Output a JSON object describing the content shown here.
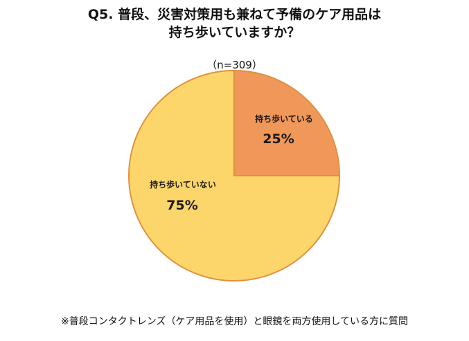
{
  "chart_data": {
    "type": "pie",
    "title_lines": [
      "Q5. 普段、災害対策用も兼ねて予備のケア用品は",
      "持ち歩いていますか？"
    ],
    "sample_size": "（n=309）",
    "slices": [
      {
        "label": "持ち歩いている",
        "value": 25,
        "value_label": "25%",
        "color": "#F0975A"
      },
      {
        "label": "持ち歩いていない",
        "value": 75,
        "value_label": "75%",
        "color": "#FDD66B"
      }
    ],
    "footnote": "※普段コンタクトレンズ（ケア用品を使用）と眼鏡を両方使用している方に質問"
  },
  "colors": {
    "slice_border": "#E0913F"
  }
}
